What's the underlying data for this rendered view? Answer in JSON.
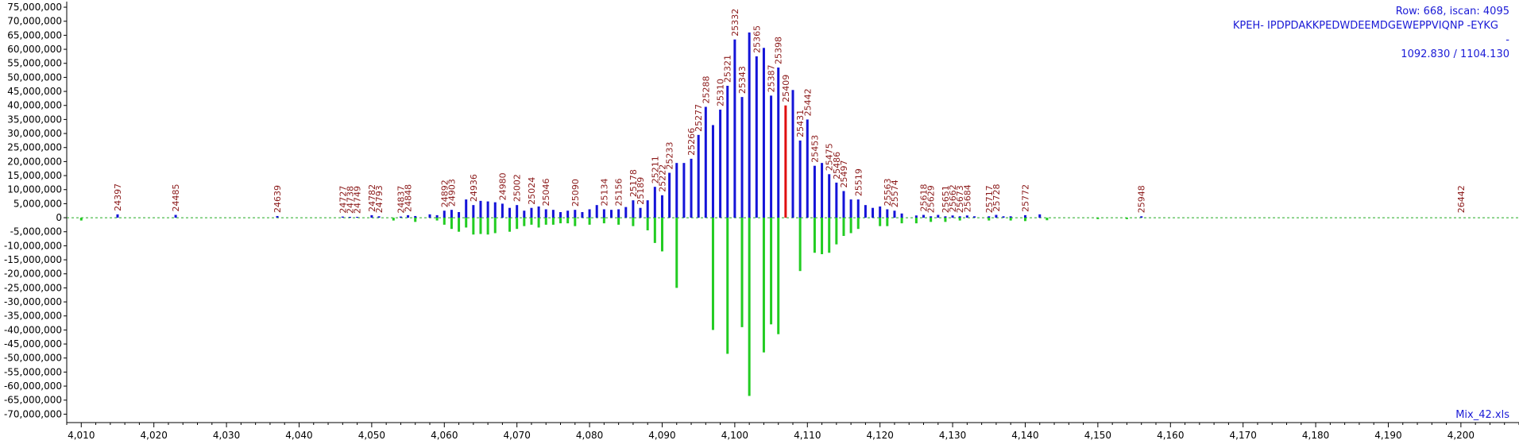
{
  "chart_data": {
    "type": "bar",
    "xlim": [
      4008,
      4208
    ],
    "ylim": [
      -73000000,
      77000000
    ],
    "y_ticks": [
      75000000,
      70000000,
      65000000,
      60000000,
      55000000,
      50000000,
      45000000,
      40000000,
      35000000,
      30000000,
      25000000,
      20000000,
      15000000,
      10000000,
      5000000,
      0,
      -5000000,
      -10000000,
      -15000000,
      -20000000,
      -25000000,
      -30000000,
      -35000000,
      -40000000,
      -45000000,
      -50000000,
      -55000000,
      -60000000,
      -65000000,
      -70000000
    ],
    "y_tick_labels": [
      "75,000,000",
      "70,000,000",
      "65,000,000",
      "60,000,000",
      "55,000,000",
      "50,000,000",
      "45,000,000",
      "40,000,000",
      "35,000,000",
      "30,000,000",
      "25,000,000",
      "20,000,000",
      "15,000,000",
      "10,000,000",
      "5,000,000",
      "0",
      "-5,000,000",
      "-10,000,000",
      "-15,000,000",
      "-20,000,000",
      "-25,000,000",
      "-30,000,000",
      "-35,000,000",
      "-40,000,000",
      "-45,000,000",
      "-50,000,000",
      "-55,000,000",
      "-60,000,000",
      "-65,000,000",
      "-70,000,000"
    ],
    "x_ticks": [
      4010,
      4020,
      4030,
      4040,
      4050,
      4060,
      4070,
      4080,
      4090,
      4100,
      4110,
      4120,
      4130,
      4140,
      4150,
      4160,
      4170,
      4180,
      4190,
      4200
    ],
    "x_tick_labels": [
      "4,010",
      "4,020",
      "4,030",
      "4,040",
      "4,050",
      "4,060",
      "4,070",
      "4,080",
      "4,090",
      "4,100",
      "4,110",
      "4,120",
      "4,130",
      "4,140",
      "4,150",
      "4,160",
      "4,170",
      "4,180",
      "4,190",
      "4,200"
    ],
    "colors": {
      "positive": "#1414d8",
      "negative": "#22cc22",
      "highlight": "#e01010",
      "baseline": "#22aa22",
      "scan_label": "#8b1a1a",
      "info_text": "#1a1ad6"
    },
    "info_lines": [
      "Row: 668, iscan: 4095",
      "KPEH-  IPDPDAKKPEDWDEEMDGEWEPPVIQNP  -EYKG",
      "-",
      "1092.830 / 1104.130"
    ],
    "footer_label": "Mix_42.xls",
    "series": [
      {
        "x": [
          4015,
          4023,
          4037,
          4046,
          4047,
          4048,
          4050,
          4051,
          4054,
          4055,
          4056,
          4058,
          4059,
          4060,
          4061,
          4062,
          4063,
          4064,
          4065,
          4066,
          4067,
          4068,
          4069,
          4070,
          4071,
          4072,
          4073,
          4074,
          4075,
          4076,
          4077,
          4078,
          4079,
          4080,
          4081,
          4082,
          4083,
          4084,
          4085,
          4086,
          4087,
          4088,
          4089,
          4090,
          4091,
          4092,
          4093,
          4094,
          4095,
          4096,
          4097,
          4098,
          4099,
          4100,
          4101,
          4102,
          4103,
          4104,
          4105,
          4106,
          4108,
          4109,
          4110,
          4111,
          4112,
          4113,
          4114,
          4115,
          4116,
          4117,
          4118,
          4119,
          4120,
          4121,
          4122,
          4123,
          4125,
          4126,
          4127,
          4128,
          4129,
          4130,
          4131,
          4132,
          4133,
          4135,
          4136,
          4137,
          4138,
          4140,
          4142,
          4156
        ],
        "values": [
          1200000,
          1000000,
          600000,
          400000,
          300000,
          300000,
          900000,
          500000,
          400000,
          900000,
          600000,
          1200000,
          900000,
          2500000,
          2800000,
          2000000,
          6500000,
          4500000,
          6000000,
          5800000,
          5500000,
          5000000,
          3500000,
          4500000,
          2500000,
          3500000,
          4000000,
          3000000,
          2800000,
          2000000,
          2500000,
          2800000,
          2000000,
          3000000,
          4500000,
          3000000,
          2800000,
          3000000,
          3800000,
          6200000,
          3500000,
          6200000,
          11000000,
          8000000,
          16000000,
          19500000,
          19500000,
          21000000,
          29500000,
          39500000,
          33000000,
          38500000,
          47000000,
          63500000,
          43000000,
          66000000,
          57500000,
          60500000,
          43500000,
          53500000,
          45500000,
          27500000,
          35000000,
          18500000,
          19500000,
          15500000,
          12500000,
          9500000,
          6500000,
          6500000,
          4500000,
          3500000,
          4000000,
          3000000,
          2500000,
          1500000,
          800000,
          1000000,
          500000,
          1000000,
          500000,
          800000,
          500000,
          800000,
          500000,
          500000,
          1000000,
          500000,
          500000,
          900000,
          1200000,
          500000
        ]
      },
      {
        "x": [
          4100,
          4101,
          4102,
          4103,
          4104,
          4105,
          4106,
          4107
        ],
        "values": [
          0,
          0,
          0,
          0,
          0,
          0,
          0,
          40000000
        ],
        "highlight_only": true
      },
      {
        "x": [
          4010,
          4053,
          4056,
          4059,
          4060,
          4061,
          4062,
          4063,
          4064,
          4065,
          4066,
          4067,
          4069,
          4070,
          4071,
          4072,
          4073,
          4074,
          4075,
          4076,
          4077,
          4078,
          4080,
          4082,
          4084,
          4086,
          4088,
          4089,
          4090,
          4092,
          4097,
          4099,
          4101,
          4102,
          4104,
          4105,
          4106,
          4109,
          4111,
          4112,
          4113,
          4114,
          4115,
          4116,
          4117,
          4120,
          4121,
          4123,
          4125,
          4127,
          4129,
          4131,
          4135,
          4138,
          4140,
          4143,
          4150,
          4154
        ],
        "values": [
          -1000000,
          -1000000,
          -1500000,
          -1000000,
          -2500000,
          -4000000,
          -5000000,
          -3500000,
          -6000000,
          -5800000,
          -6000000,
          -5500000,
          -5000000,
          -4000000,
          -3000000,
          -2500000,
          -3500000,
          -2500000,
          -2500000,
          -2000000,
          -2000000,
          -3000000,
          -2500000,
          -2000000,
          -2500000,
          -3000000,
          -4500000,
          -9000000,
          -12000000,
          -25000000,
          -40000000,
          -48500000,
          -39000000,
          -63500000,
          -48000000,
          -38000000,
          -41500000,
          -19000000,
          -12500000,
          -13000000,
          -12500000,
          -9500000,
          -6500000,
          -5500000,
          -4000000,
          -3000000,
          -3000000,
          -2000000,
          -2000000,
          -1500000,
          -1500000,
          -1000000,
          -1000000,
          -1000000,
          -1200000,
          -900000,
          -500000,
          -500000
        ]
      }
    ],
    "annotations": [
      {
        "x": 4015,
        "y": 1200000,
        "label": "24397"
      },
      {
        "x": 4023,
        "y": 1000000,
        "label": "24485"
      },
      {
        "x": 4037,
        "y": 600000,
        "label": "24639"
      },
      {
        "x": 4046,
        "y": 400000,
        "label": "24727"
      },
      {
        "x": 4047,
        "y": 300000,
        "label": "24738"
      },
      {
        "x": 4048,
        "y": 300000,
        "label": "24749"
      },
      {
        "x": 4050,
        "y": 900000,
        "label": "24782"
      },
      {
        "x": 4051,
        "y": 500000,
        "label": "24793"
      },
      {
        "x": 4054,
        "y": 400000,
        "label": "24837"
      },
      {
        "x": 4055,
        "y": 900000,
        "label": "24848"
      },
      {
        "x": 4060,
        "y": 2500000,
        "label": "24892"
      },
      {
        "x": 4061,
        "y": 2800000,
        "label": "24903"
      },
      {
        "x": 4064,
        "y": 4500000,
        "label": "24936"
      },
      {
        "x": 4068,
        "y": 5000000,
        "label": "24980"
      },
      {
        "x": 4070,
        "y": 4500000,
        "label": "25002"
      },
      {
        "x": 4072,
        "y": 3500000,
        "label": "25024"
      },
      {
        "x": 4074,
        "y": 3000000,
        "label": "25046"
      },
      {
        "x": 4078,
        "y": 2800000,
        "label": "25090"
      },
      {
        "x": 4082,
        "y": 3000000,
        "label": "25134"
      },
      {
        "x": 4084,
        "y": 3000000,
        "label": "25156"
      },
      {
        "x": 4086,
        "y": 6200000,
        "label": "25178"
      },
      {
        "x": 4087,
        "y": 3500000,
        "label": "25189"
      },
      {
        "x": 4089,
        "y": 11000000,
        "label": "25211"
      },
      {
        "x": 4090,
        "y": 8000000,
        "label": "25222"
      },
      {
        "x": 4091,
        "y": 16000000,
        "label": "25233"
      },
      {
        "x": 4094,
        "y": 21000000,
        "label": "25266"
      },
      {
        "x": 4095,
        "y": 29500000,
        "label": "25277"
      },
      {
        "x": 4096,
        "y": 39500000,
        "label": "25288"
      },
      {
        "x": 4098,
        "y": 38500000,
        "label": "25310"
      },
      {
        "x": 4099,
        "y": 47000000,
        "label": "25321"
      },
      {
        "x": 4100,
        "y": 63500000,
        "label": "25332"
      },
      {
        "x": 4101,
        "y": 43000000,
        "label": "25343"
      },
      {
        "x": 4103,
        "y": 57500000,
        "label": "25365"
      },
      {
        "x": 4105,
        "y": 43500000,
        "label": "25387"
      },
      {
        "x": 4106,
        "y": 53500000,
        "label": "25398"
      },
      {
        "x": 4107,
        "y": 40000000,
        "label": "25409"
      },
      {
        "x": 4109,
        "y": 27500000,
        "label": "25431"
      },
      {
        "x": 4110,
        "y": 35000000,
        "label": "25442"
      },
      {
        "x": 4111,
        "y": 18500000,
        "label": "25453"
      },
      {
        "x": 4113,
        "y": 15500000,
        "label": "25475"
      },
      {
        "x": 4114,
        "y": 12500000,
        "label": "25486"
      },
      {
        "x": 4115,
        "y": 9500000,
        "label": "25497"
      },
      {
        "x": 4117,
        "y": 6500000,
        "label": "25519"
      },
      {
        "x": 4121,
        "y": 3000000,
        "label": "25563"
      },
      {
        "x": 4122,
        "y": 2500000,
        "label": "25574"
      },
      {
        "x": 4126,
        "y": 1000000,
        "label": "25618"
      },
      {
        "x": 4127,
        "y": 500000,
        "label": "25629"
      },
      {
        "x": 4129,
        "y": 500000,
        "label": "25651"
      },
      {
        "x": 4130,
        "y": 800000,
        "label": "25662"
      },
      {
        "x": 4131,
        "y": 500000,
        "label": "25673"
      },
      {
        "x": 4132,
        "y": 800000,
        "label": "25684"
      },
      {
        "x": 4135,
        "y": 500000,
        "label": "25717"
      },
      {
        "x": 4136,
        "y": 1000000,
        "label": "25728"
      },
      {
        "x": 4140,
        "y": 900000,
        "label": "25772"
      },
      {
        "x": 4156,
        "y": 500000,
        "label": "25948"
      },
      {
        "x": 4200,
        "y": 500000,
        "label": "26442"
      }
    ]
  }
}
